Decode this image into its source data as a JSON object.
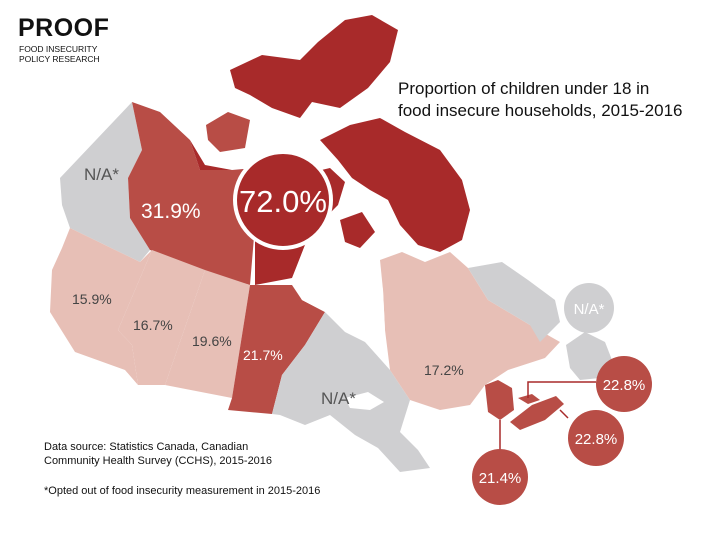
{
  "logo": {
    "name": "PROOF",
    "line1": "FOOD INSECURITY",
    "line2": "POLICY RESEARCH"
  },
  "title": {
    "line1": "Proportion of children under 18 in",
    "line2": "food insecure households, 2015-2016"
  },
  "source": {
    "line1": "Data source: Statistics Canada, Canadian",
    "line2": "Community Health Survey (CCHS), 2015-2016"
  },
  "footnote": "*Opted out of food insecurity measurement in 2015-2016",
  "colors": {
    "na": "#cfcfd1",
    "low": "#e7bfb6",
    "mid": "#b84d46",
    "high": "#a82a2a",
    "water": "#ffffff"
  },
  "regions": {
    "yukon": "N/A*",
    "nwt": "31.9%",
    "nunavut": "72.0%",
    "bc": "15.9%",
    "alberta": "16.7%",
    "saskatchewan": "19.6%",
    "manitoba": "21.7%",
    "ontario": "N/A*",
    "quebec": "17.2%",
    "newfoundland": "N/A*",
    "nb": "21.4%",
    "ns": "22.8%",
    "pei": "22.8%"
  }
}
